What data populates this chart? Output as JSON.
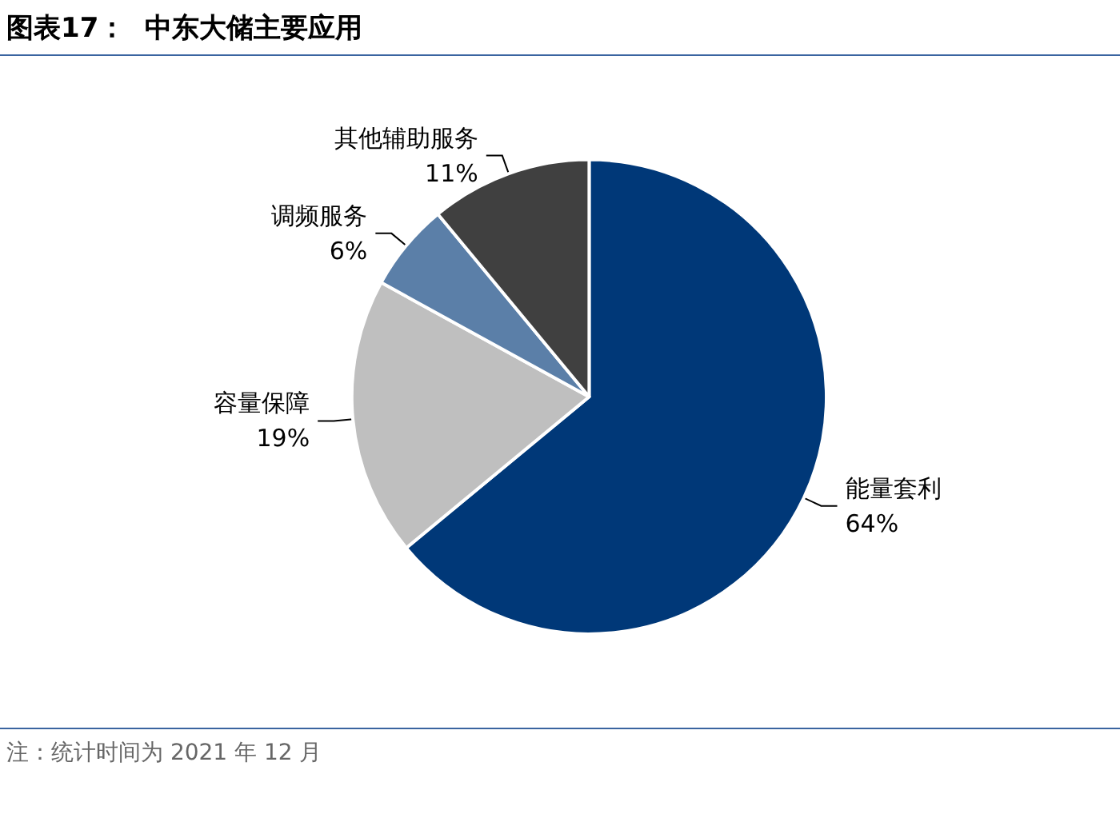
{
  "chart_data": {
    "type": "pie",
    "title": "图表17：  中东大储主要应用",
    "categories": [
      "能量套利",
      "容量保障",
      "调频服务",
      "其他辅助服务"
    ],
    "values": [
      64,
      19,
      6,
      11
    ],
    "value_labels": [
      "64%",
      "19%",
      "6%",
      "11%"
    ],
    "colors": [
      "#003878",
      "#bfbfbf",
      "#5b7fa8",
      "#404040"
    ],
    "annotations": [
      "注：统计时间为 2021 年 12 月"
    ]
  }
}
